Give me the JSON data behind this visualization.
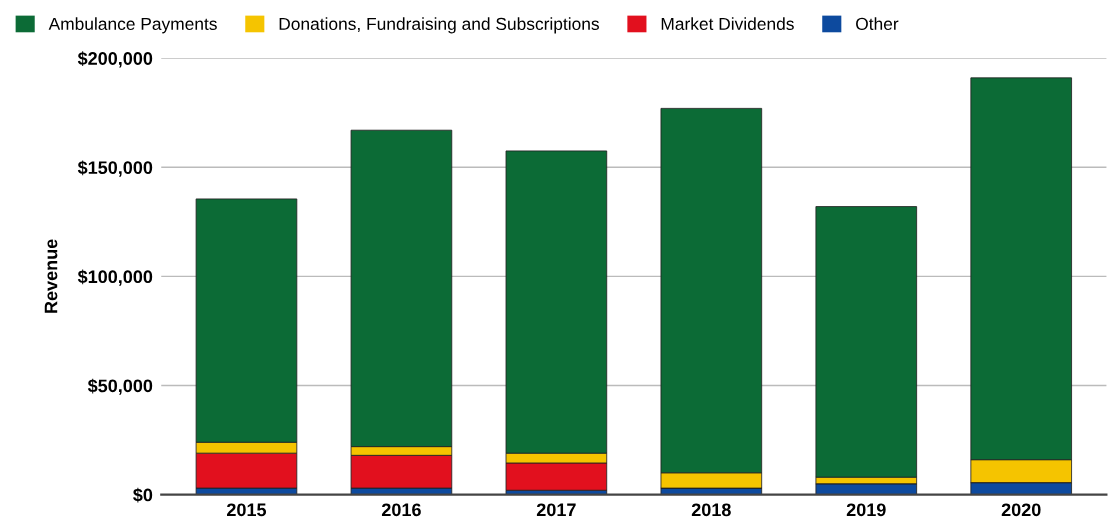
{
  "chart_data": {
    "type": "bar",
    "stacked": true,
    "ylabel": "Revenue",
    "categories": [
      "2015",
      "2016",
      "2017",
      "2018",
      "2019",
      "2020"
    ],
    "series": [
      {
        "name": "Other",
        "color": "#0d4a9e",
        "values": [
          3000,
          3000,
          2000,
          3000,
          5000,
          5500
        ]
      },
      {
        "name": "Market Dividends",
        "color": "#e2101e",
        "values": [
          16000,
          15000,
          12500,
          0,
          0,
          0
        ]
      },
      {
        "name": "Donations, Fundraising and Subscriptions",
        "color": "#f5c400",
        "values": [
          5000,
          4000,
          4500,
          7000,
          3000,
          10500
        ]
      },
      {
        "name": "Ambulance Payments",
        "color": "#0c6b36",
        "values": [
          111500,
          145000,
          138500,
          167000,
          124000,
          175000
        ]
      }
    ],
    "ylim": [
      0,
      200000
    ],
    "yticks": [
      {
        "value": 0,
        "label": "$0"
      },
      {
        "value": 50000,
        "label": "$50,000"
      },
      {
        "value": 100000,
        "label": "$100,000"
      },
      {
        "value": 150000,
        "label": "$150,000"
      },
      {
        "value": 200000,
        "label": "$200,000"
      }
    ],
    "grid": "y",
    "legend": "top left"
  }
}
